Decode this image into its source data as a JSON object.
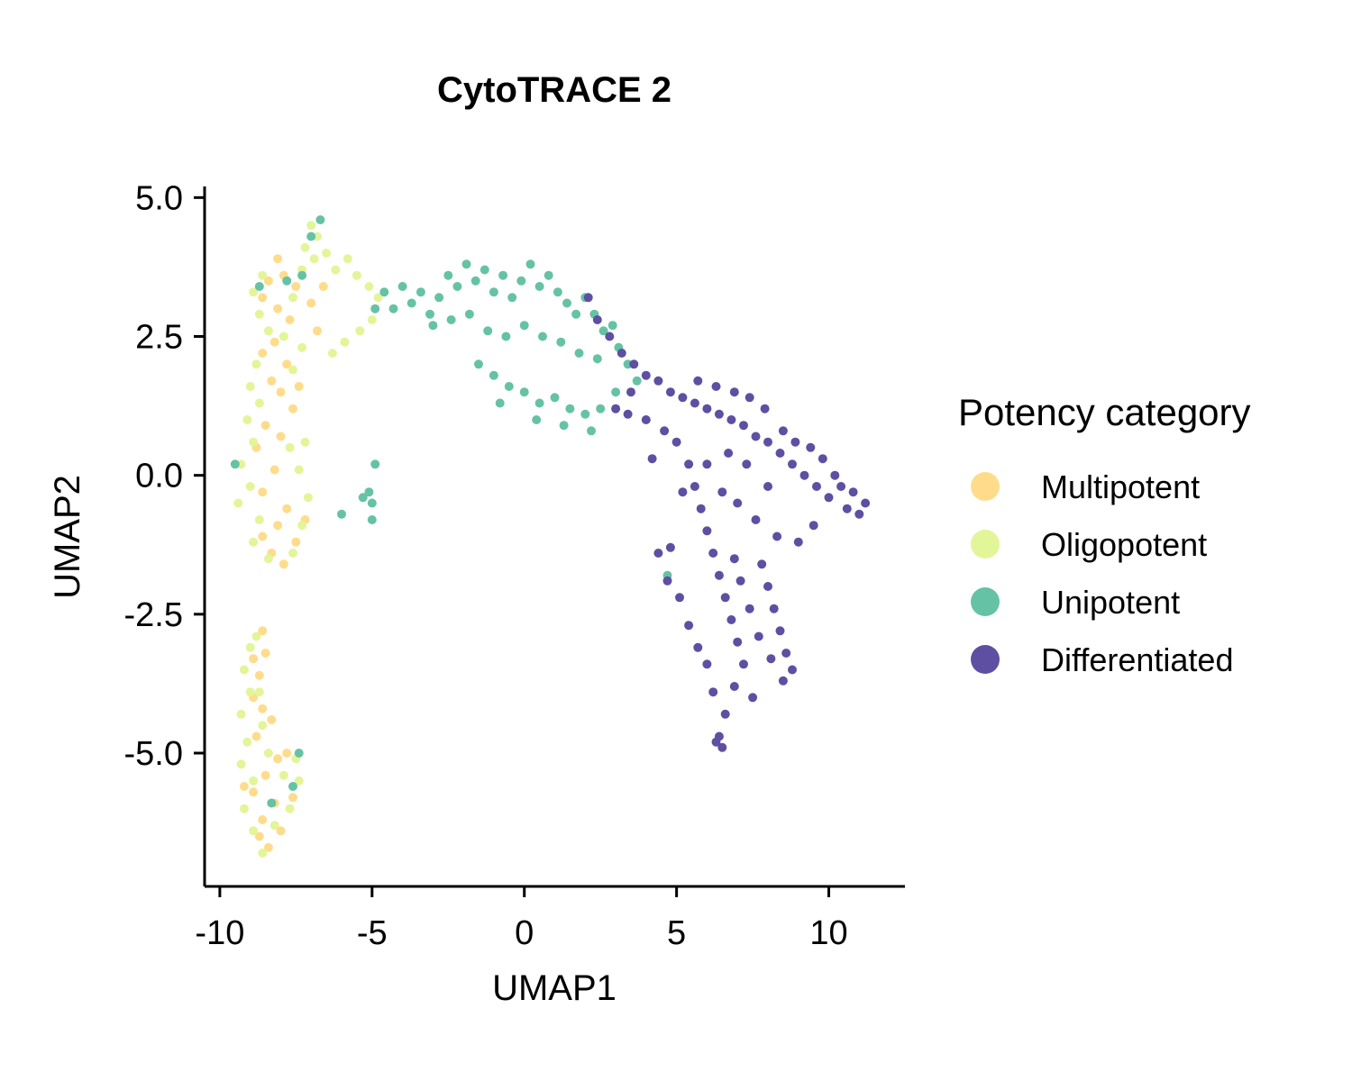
{
  "chart_data": {
    "type": "scatter",
    "title": "CytoTRACE 2",
    "xlabel": "UMAP1",
    "ylabel": "UMAP2",
    "xlim": [
      -10.5,
      12.5
    ],
    "ylim": [
      -7.4,
      5.2
    ],
    "x_ticks": [
      -10,
      -5,
      0,
      5,
      10
    ],
    "x_tick_labels": [
      "-10",
      "-5",
      "0",
      "5",
      "10"
    ],
    "y_ticks": [
      5.0,
      2.5,
      0.0,
      -2.5,
      -5.0
    ],
    "y_tick_labels": [
      "5.0",
      "2.5",
      "0.0",
      "-2.5",
      "-5.0"
    ],
    "grid": false,
    "legend": {
      "title": "Potency category",
      "position": "right",
      "entries": [
        {
          "label": "Multipotent",
          "color": "#FEDC8B"
        },
        {
          "label": "Oligopotent",
          "color": "#E3F599"
        },
        {
          "label": "Unipotent",
          "color": "#66C2A5"
        },
        {
          "label": "Differentiated",
          "color": "#5E4FA2"
        }
      ]
    },
    "series": [
      {
        "name": "Multipotent",
        "color": "#FEDC8B",
        "points": [
          [
            -8.4,
            3.5
          ],
          [
            -8.1,
            3.0
          ],
          [
            -8.6,
            3.2
          ],
          [
            -7.9,
            3.6
          ],
          [
            -7.5,
            3.4
          ],
          [
            -8.2,
            2.4
          ],
          [
            -8.6,
            2.2
          ],
          [
            -7.8,
            2.0
          ],
          [
            -7.4,
            1.6
          ],
          [
            -8.0,
            1.5
          ],
          [
            -8.3,
            1.7
          ],
          [
            -7.6,
            1.2
          ],
          [
            -8.5,
            0.9
          ],
          [
            -8.8,
            0.5
          ],
          [
            -8.2,
            0.1
          ],
          [
            -8.6,
            -0.3
          ],
          [
            -7.8,
            -0.6
          ],
          [
            -8.1,
            -0.9
          ],
          [
            -7.5,
            -1.2
          ],
          [
            -8.3,
            -1.4
          ],
          [
            -7.9,
            -1.6
          ],
          [
            -8.6,
            -1.1
          ],
          [
            -7.2,
            -0.8
          ],
          [
            -6.8,
            2.6
          ],
          [
            -7.0,
            3.1
          ],
          [
            -6.6,
            3.4
          ],
          [
            -8.9,
            -3.3
          ],
          [
            -8.7,
            -3.6
          ],
          [
            -8.5,
            -3.2
          ],
          [
            -8.9,
            -4.0
          ],
          [
            -8.6,
            -4.2
          ],
          [
            -8.3,
            -4.4
          ],
          [
            -8.8,
            -4.7
          ],
          [
            -8.1,
            -5.1
          ],
          [
            -8.5,
            -5.4
          ],
          [
            -8.9,
            -5.7
          ],
          [
            -8.2,
            -5.9
          ],
          [
            -8.6,
            -6.2
          ],
          [
            -8.0,
            -6.4
          ],
          [
            -8.7,
            -6.5
          ],
          [
            -7.6,
            -5.8
          ],
          [
            -7.8,
            -5.0
          ],
          [
            -8.6,
            -2.8
          ],
          [
            -9.2,
            -5.6
          ],
          [
            -8.4,
            -6.7
          ],
          [
            -8.0,
            0.7
          ],
          [
            -7.7,
            2.8
          ],
          [
            -8.1,
            3.9
          ]
        ]
      },
      {
        "name": "Oligopotent",
        "color": "#E3F599",
        "points": [
          [
            -7.0,
            4.5
          ],
          [
            -6.8,
            4.3
          ],
          [
            -7.2,
            4.1
          ],
          [
            -6.5,
            4.0
          ],
          [
            -6.2,
            3.7
          ],
          [
            -5.8,
            3.9
          ],
          [
            -5.5,
            3.6
          ],
          [
            -5.1,
            3.4
          ],
          [
            -4.8,
            3.2
          ],
          [
            -5.0,
            2.8
          ],
          [
            -5.4,
            2.6
          ],
          [
            -5.9,
            2.4
          ],
          [
            -6.3,
            2.2
          ],
          [
            -8.6,
            3.6
          ],
          [
            -8.9,
            3.3
          ],
          [
            -8.7,
            2.9
          ],
          [
            -8.4,
            2.6
          ],
          [
            -8.8,
            2.0
          ],
          [
            -9.0,
            1.6
          ],
          [
            -8.7,
            1.3
          ],
          [
            -9.1,
            1.0
          ],
          [
            -8.9,
            0.6
          ],
          [
            -9.3,
            0.2
          ],
          [
            -9.0,
            -0.2
          ],
          [
            -9.4,
            -0.5
          ],
          [
            -8.7,
            -0.8
          ],
          [
            -8.9,
            -1.2
          ],
          [
            -8.4,
            -1.5
          ],
          [
            -7.6,
            -1.4
          ],
          [
            -7.3,
            -0.9
          ],
          [
            -7.1,
            -0.4
          ],
          [
            -7.4,
            0.1
          ],
          [
            -7.7,
            0.5
          ],
          [
            -7.2,
            0.6
          ],
          [
            -7.6,
            1.9
          ],
          [
            -7.3,
            2.3
          ],
          [
            -7.9,
            2.5
          ],
          [
            -7.6,
            3.2
          ],
          [
            -7.3,
            3.7
          ],
          [
            -6.9,
            3.9
          ],
          [
            -9.0,
            -3.1
          ],
          [
            -9.2,
            -3.5
          ],
          [
            -9.0,
            -3.9
          ],
          [
            -9.3,
            -4.3
          ],
          [
            -9.1,
            -4.8
          ],
          [
            -9.3,
            -5.2
          ],
          [
            -8.9,
            -5.5
          ],
          [
            -9.2,
            -6.0
          ],
          [
            -8.9,
            -6.4
          ],
          [
            -8.6,
            -6.8
          ],
          [
            -8.2,
            -6.3
          ],
          [
            -7.7,
            -6.0
          ],
          [
            -7.4,
            -5.5
          ],
          [
            -7.5,
            -5.1
          ],
          [
            -7.9,
            -5.4
          ],
          [
            -8.4,
            -5.0
          ],
          [
            -8.6,
            -4.5
          ],
          [
            -8.7,
            -3.9
          ],
          [
            -8.8,
            -2.9
          ]
        ]
      },
      {
        "name": "Unipotent",
        "color": "#66C2A5",
        "points": [
          [
            -7.0,
            4.3
          ],
          [
            -6.7,
            4.6
          ],
          [
            -7.3,
            3.6
          ],
          [
            -4.9,
            3.0
          ],
          [
            -4.6,
            3.3
          ],
          [
            -4.3,
            3.0
          ],
          [
            -4.0,
            3.4
          ],
          [
            -3.7,
            3.1
          ],
          [
            -3.4,
            3.3
          ],
          [
            -3.1,
            2.9
          ],
          [
            -2.8,
            3.2
          ],
          [
            -2.5,
            3.6
          ],
          [
            -2.2,
            3.4
          ],
          [
            -1.9,
            3.8
          ],
          [
            -1.6,
            3.5
          ],
          [
            -1.3,
            3.7
          ],
          [
            -1.0,
            3.3
          ],
          [
            -0.7,
            3.6
          ],
          [
            -0.4,
            3.2
          ],
          [
            -0.1,
            3.5
          ],
          [
            0.2,
            3.8
          ],
          [
            0.5,
            3.4
          ],
          [
            0.8,
            3.6
          ],
          [
            1.1,
            3.3
          ],
          [
            1.4,
            3.1
          ],
          [
            1.7,
            2.9
          ],
          [
            2.0,
            3.2
          ],
          [
            2.3,
            2.9
          ],
          [
            2.6,
            2.6
          ],
          [
            2.9,
            2.7
          ],
          [
            3.1,
            2.3
          ],
          [
            -3.0,
            2.7
          ],
          [
            -2.4,
            2.8
          ],
          [
            -1.8,
            2.9
          ],
          [
            -1.2,
            2.6
          ],
          [
            -0.6,
            2.5
          ],
          [
            0.0,
            2.7
          ],
          [
            0.6,
            2.5
          ],
          [
            1.2,
            2.4
          ],
          [
            1.8,
            2.2
          ],
          [
            2.4,
            2.1
          ],
          [
            -1.5,
            2.0
          ],
          [
            -1.0,
            1.8
          ],
          [
            -0.5,
            1.6
          ],
          [
            0.0,
            1.5
          ],
          [
            0.5,
            1.3
          ],
          [
            1.0,
            1.4
          ],
          [
            1.5,
            1.2
          ],
          [
            2.0,
            1.1
          ],
          [
            2.5,
            1.2
          ],
          [
            3.0,
            1.5
          ],
          [
            -0.8,
            1.3
          ],
          [
            0.4,
            1.0
          ],
          [
            1.3,
            0.9
          ],
          [
            2.2,
            0.8
          ],
          [
            3.4,
            2.0
          ],
          [
            3.7,
            1.7
          ],
          [
            -5.1,
            -0.3
          ],
          [
            -5.0,
            -0.5
          ],
          [
            -4.9,
            0.2
          ],
          [
            -5.3,
            -0.4
          ],
          [
            -6.0,
            -0.7
          ],
          [
            -5.0,
            -0.8
          ],
          [
            -7.4,
            -5.0
          ],
          [
            -7.6,
            -5.6
          ],
          [
            -8.3,
            -5.9
          ],
          [
            -7.8,
            3.5
          ],
          [
            -9.5,
            0.2
          ],
          [
            -8.7,
            3.4
          ],
          [
            4.7,
            -1.8
          ]
        ]
      },
      {
        "name": "Differentiated",
        "color": "#5E4FA2",
        "points": [
          [
            2.1,
            3.2
          ],
          [
            2.4,
            2.8
          ],
          [
            2.8,
            2.5
          ],
          [
            3.2,
            2.2
          ],
          [
            3.6,
            2.0
          ],
          [
            4.0,
            1.8
          ],
          [
            4.4,
            1.7
          ],
          [
            4.8,
            1.5
          ],
          [
            5.2,
            1.4
          ],
          [
            5.6,
            1.3
          ],
          [
            6.0,
            1.2
          ],
          [
            6.4,
            1.1
          ],
          [
            6.8,
            1.0
          ],
          [
            7.2,
            0.9
          ],
          [
            7.6,
            0.7
          ],
          [
            8.0,
            0.6
          ],
          [
            8.4,
            0.4
          ],
          [
            8.8,
            0.2
          ],
          [
            9.2,
            0.0
          ],
          [
            9.6,
            -0.2
          ],
          [
            10.0,
            -0.4
          ],
          [
            10.4,
            -0.2
          ],
          [
            10.8,
            -0.3
          ],
          [
            11.2,
            -0.5
          ],
          [
            11.0,
            -0.7
          ],
          [
            10.6,
            -0.6
          ],
          [
            10.2,
            0.0
          ],
          [
            9.8,
            0.3
          ],
          [
            9.4,
            0.5
          ],
          [
            8.9,
            0.6
          ],
          [
            8.5,
            0.8
          ],
          [
            7.9,
            1.2
          ],
          [
            7.4,
            1.4
          ],
          [
            6.9,
            1.5
          ],
          [
            6.3,
            1.6
          ],
          [
            5.7,
            1.7
          ],
          [
            3.0,
            1.2
          ],
          [
            3.4,
            1.1
          ],
          [
            4.0,
            1.0
          ],
          [
            4.6,
            0.8
          ],
          [
            5.0,
            0.6
          ],
          [
            5.4,
            0.2
          ],
          [
            5.6,
            -0.2
          ],
          [
            5.8,
            -0.6
          ],
          [
            6.0,
            -1.0
          ],
          [
            6.2,
            -1.4
          ],
          [
            6.4,
            -1.8
          ],
          [
            6.6,
            -2.2
          ],
          [
            6.8,
            -2.6
          ],
          [
            7.0,
            -3.0
          ],
          [
            7.2,
            -3.4
          ],
          [
            6.9,
            -3.8
          ],
          [
            6.6,
            -4.3
          ],
          [
            6.4,
            -4.7
          ],
          [
            6.5,
            -4.9
          ],
          [
            6.3,
            -4.8
          ],
          [
            7.8,
            -1.6
          ],
          [
            8.0,
            -2.0
          ],
          [
            8.2,
            -2.4
          ],
          [
            8.4,
            -2.8
          ],
          [
            8.6,
            -3.2
          ],
          [
            8.8,
            -3.5
          ],
          [
            8.5,
            -3.7
          ],
          [
            8.1,
            -3.3
          ],
          [
            7.7,
            -2.9
          ],
          [
            7.4,
            -2.4
          ],
          [
            7.1,
            -1.9
          ],
          [
            6.9,
            -1.5
          ],
          [
            5.1,
            -2.2
          ],
          [
            5.4,
            -2.7
          ],
          [
            5.7,
            -3.1
          ],
          [
            6.0,
            -3.4
          ],
          [
            4.8,
            -1.3
          ],
          [
            4.4,
            -1.4
          ],
          [
            4.7,
            -1.9
          ],
          [
            6.5,
            -0.3
          ],
          [
            7.0,
            -0.5
          ],
          [
            7.6,
            -0.8
          ],
          [
            8.3,
            -1.1
          ],
          [
            9.0,
            -1.2
          ],
          [
            9.5,
            -0.9
          ],
          [
            6.0,
            0.2
          ],
          [
            6.7,
            0.4
          ],
          [
            7.3,
            0.2
          ],
          [
            8.0,
            -0.2
          ],
          [
            5.2,
            -0.3
          ],
          [
            4.2,
            0.3
          ],
          [
            3.5,
            1.5
          ],
          [
            7.5,
            -4.0
          ],
          [
            6.2,
            -3.9
          ]
        ]
      }
    ]
  }
}
